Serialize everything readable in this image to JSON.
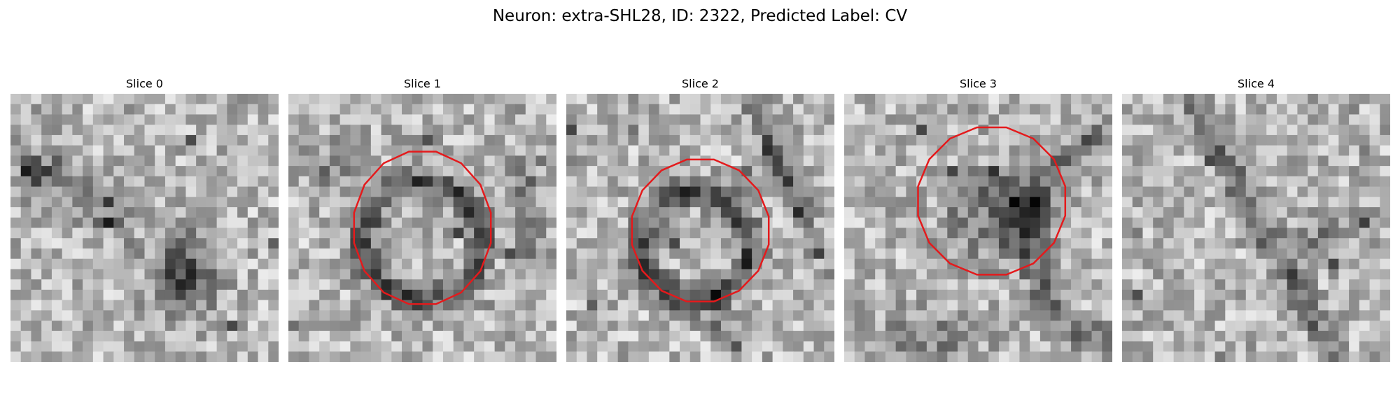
{
  "figure": {
    "title": "Neuron: extra-SHL28, ID: 2322, Predicted Label: CV"
  },
  "colors": {
    "contour": "#e41a1c",
    "background": "#ffffff"
  },
  "panels": [
    {
      "title": "Slice 0",
      "has_contour": false
    },
    {
      "title": "Slice 1",
      "has_contour": true
    },
    {
      "title": "Slice 2",
      "has_contour": true
    },
    {
      "title": "Slice 3",
      "has_contour": true
    },
    {
      "title": "Slice 4",
      "has_contour": false
    }
  ]
}
